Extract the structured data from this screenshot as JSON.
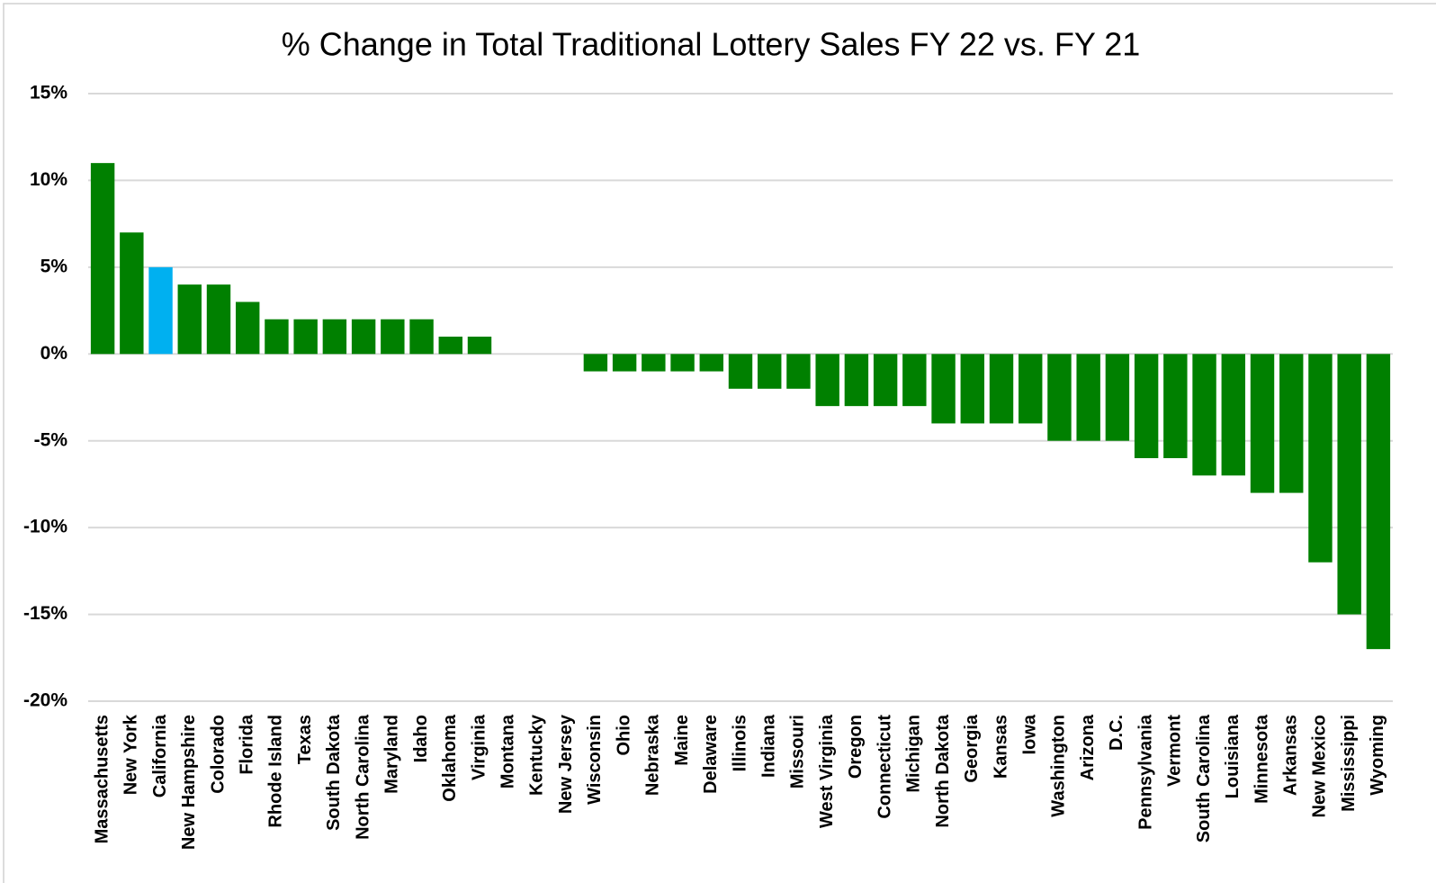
{
  "chart_data": {
    "type": "bar",
    "title": "% Change in Total Traditional Lottery Sales FY 22 vs. FY 21",
    "categories": [
      "Massachusetts",
      "New York",
      "California",
      "New Hampshire",
      "Colorado",
      "Florida",
      "Rhode Island",
      "Texas",
      "South Dakota",
      "North Carolina",
      "Maryland",
      "Idaho",
      "Oklahoma",
      "Virginia",
      "Montana",
      "Kentucky",
      "New Jersey",
      "Wisconsin",
      "Ohio",
      "Nebraska",
      "Maine",
      "Delaware",
      "Illinois",
      "Indiana",
      "Missouri",
      "West Virginia",
      "Oregon",
      "Connecticut",
      "Michigan",
      "North Dakota",
      "Georgia",
      "Kansas",
      "Iowa",
      "Washington",
      "Arizona",
      "D.C.",
      "Pennsylvania",
      "Vermont",
      "South Carolina",
      "Louisiana",
      "Minnesota",
      "Arkansas",
      "New Mexico",
      "Mississippi",
      "Wyoming"
    ],
    "values": [
      11,
      7,
      5,
      4,
      4,
      3,
      2,
      2,
      2,
      2,
      2,
      2,
      1,
      1,
      0,
      0,
      0,
      -1,
      -1,
      -1,
      -1,
      -1,
      -2,
      -2,
      -2,
      -3,
      -3,
      -3,
      -3,
      -4,
      -4,
      -4,
      -4,
      -5,
      -5,
      -5,
      -6,
      -6,
      -7,
      -7,
      -8,
      -8,
      -12,
      -15,
      -17
    ],
    "colors": [
      "#008000",
      "#008000",
      "#00b0f0",
      "#008000",
      "#008000",
      "#008000",
      "#008000",
      "#008000",
      "#008000",
      "#008000",
      "#008000",
      "#008000",
      "#008000",
      "#008000",
      "#008000",
      "#008000",
      "#008000",
      "#008000",
      "#008000",
      "#008000",
      "#008000",
      "#008000",
      "#008000",
      "#008000",
      "#008000",
      "#008000",
      "#008000",
      "#008000",
      "#008000",
      "#008000",
      "#008000",
      "#008000",
      "#008000",
      "#008000",
      "#008000",
      "#008000",
      "#008000",
      "#008000",
      "#008000",
      "#008000",
      "#008000",
      "#008000",
      "#008000",
      "#008000",
      "#008000"
    ],
    "ylim": [
      -20,
      15
    ],
    "yticks": [
      {
        "value": -20,
        "label": "-20%"
      },
      {
        "value": -15,
        "label": "-15%"
      },
      {
        "value": -10,
        "label": "-10%"
      },
      {
        "value": -5,
        "label": "-5%"
      },
      {
        "value": 0,
        "label": "0%"
      },
      {
        "value": 5,
        "label": "5%"
      },
      {
        "value": 10,
        "label": "10%"
      },
      {
        "value": 15,
        "label": "15%"
      }
    ],
    "grid": true
  }
}
